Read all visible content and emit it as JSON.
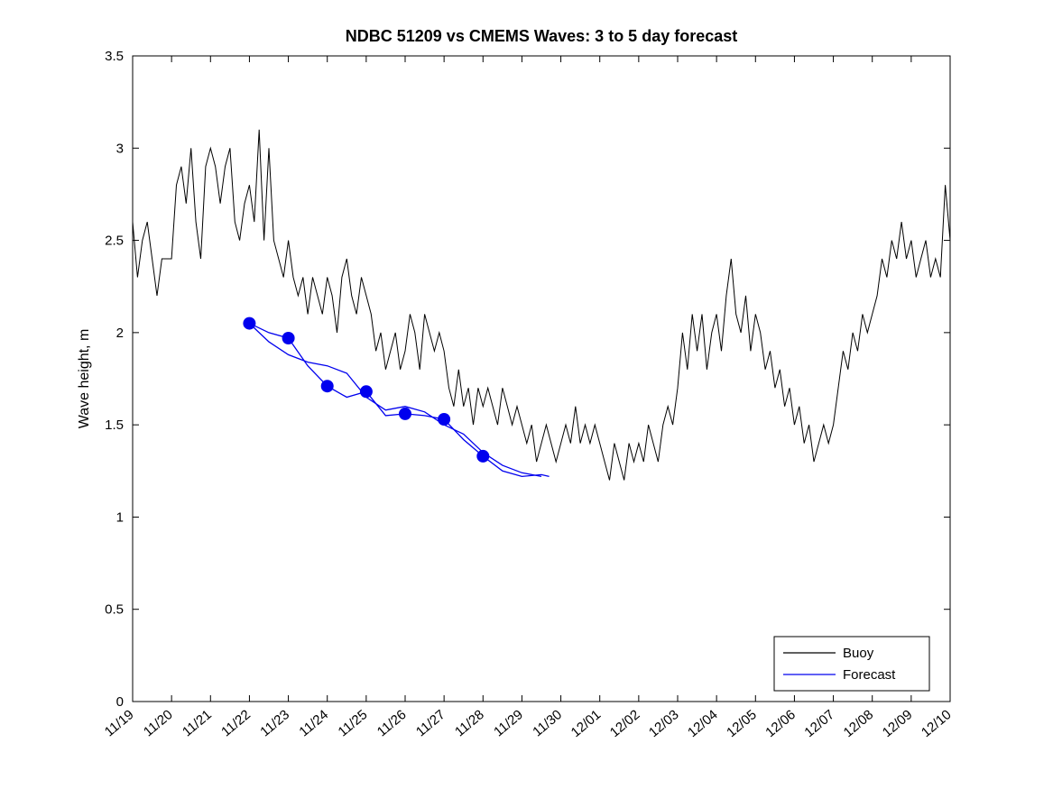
{
  "figure": {
    "background": "#ffffff"
  },
  "chart_data": {
    "type": "line",
    "title": "NDBC 51209 vs CMEMS Waves: 3 to 5 day forecast",
    "xlabel": "",
    "ylabel": "Wave height, m",
    "ylim": [
      0,
      3.5
    ],
    "xlim_days": [
      0,
      21
    ],
    "grid": false,
    "y_ticks": [
      0,
      0.5,
      1,
      1.5,
      2,
      2.5,
      3,
      3.5
    ],
    "y_tick_labels": [
      "0",
      "0.5",
      "1",
      "1.5",
      "2",
      "2.5",
      "3",
      "3.5"
    ],
    "x_tick_labels": [
      "11/19",
      "11/20",
      "11/21",
      "11/22",
      "11/23",
      "11/24",
      "11/25",
      "11/26",
      "11/27",
      "11/28",
      "11/29",
      "11/30",
      "12/01",
      "12/02",
      "12/03",
      "12/04",
      "12/05",
      "12/06",
      "12/07",
      "12/08",
      "12/09",
      "12/10"
    ],
    "x_tick_angle_deg": -40,
    "legend": {
      "position": "southeast",
      "entries": [
        "Buoy",
        "Forecast"
      ]
    },
    "series": [
      {
        "name": "Buoy",
        "color": "#000000",
        "line_width": 1,
        "x_start": 0,
        "x_step": 0.125,
        "values": [
          2.6,
          2.3,
          2.5,
          2.6,
          2.4,
          2.2,
          2.4,
          2.4,
          2.4,
          2.8,
          2.9,
          2.7,
          3.0,
          2.6,
          2.4,
          2.9,
          3.0,
          2.9,
          2.7,
          2.9,
          3.0,
          2.6,
          2.5,
          2.7,
          2.8,
          2.6,
          3.1,
          2.5,
          3.0,
          2.5,
          2.4,
          2.3,
          2.5,
          2.3,
          2.2,
          2.3,
          2.1,
          2.3,
          2.2,
          2.1,
          2.3,
          2.2,
          2.0,
          2.3,
          2.4,
          2.2,
          2.1,
          2.3,
          2.2,
          2.1,
          1.9,
          2.0,
          1.8,
          1.9,
          2.0,
          1.8,
          1.9,
          2.1,
          2.0,
          1.8,
          2.1,
          2.0,
          1.9,
          2.0,
          1.9,
          1.7,
          1.6,
          1.8,
          1.6,
          1.7,
          1.5,
          1.7,
          1.6,
          1.7,
          1.6,
          1.5,
          1.7,
          1.6,
          1.5,
          1.6,
          1.5,
          1.4,
          1.5,
          1.3,
          1.4,
          1.5,
          1.4,
          1.3,
          1.4,
          1.5,
          1.4,
          1.6,
          1.4,
          1.5,
          1.4,
          1.5,
          1.4,
          1.3,
          1.2,
          1.4,
          1.3,
          1.2,
          1.4,
          1.3,
          1.4,
          1.3,
          1.5,
          1.4,
          1.3,
          1.5,
          1.6,
          1.5,
          1.7,
          2.0,
          1.8,
          2.1,
          1.9,
          2.1,
          1.8,
          2.0,
          2.1,
          1.9,
          2.2,
          2.4,
          2.1,
          2.0,
          2.2,
          1.9,
          2.1,
          2.0,
          1.8,
          1.9,
          1.7,
          1.8,
          1.6,
          1.7,
          1.5,
          1.6,
          1.4,
          1.5,
          1.3,
          1.4,
          1.5,
          1.4,
          1.5,
          1.7,
          1.9,
          1.8,
          2.0,
          1.9,
          2.1,
          2.0,
          2.1,
          2.2,
          2.4,
          2.3,
          2.5,
          2.4,
          2.6,
          2.4,
          2.5,
          2.3,
          2.4,
          2.5,
          2.3,
          2.4,
          2.3,
          2.8,
          2.5
        ]
      },
      {
        "name": "Forecast",
        "color": "#0000EE",
        "line_width": 1.3,
        "marker_radius": 7,
        "lines": [
          {
            "x": [
              3,
              3.5,
              4,
              4.5,
              5,
              5.5,
              6,
              6.5,
              7,
              7.5,
              8,
              8.5,
              9,
              9.5,
              10,
              10.5,
              10.7
            ],
            "y": [
              2.05,
              2.0,
              1.97,
              1.82,
              1.71,
              1.65,
              1.68,
              1.55,
              1.56,
              1.55,
              1.53,
              1.42,
              1.33,
              1.25,
              1.22,
              1.23,
              1.22
            ]
          },
          {
            "x": [
              3,
              3.5,
              4,
              4.5,
              5,
              5.5,
              6,
              6.5,
              7,
              7.5,
              8,
              8.5,
              9,
              9.5,
              10,
              10.5
            ],
            "y": [
              2.05,
              1.95,
              1.88,
              1.84,
              1.82,
              1.78,
              1.65,
              1.58,
              1.6,
              1.57,
              1.5,
              1.45,
              1.35,
              1.28,
              1.24,
              1.22
            ]
          }
        ],
        "markers": [
          [
            3,
            2.05
          ],
          [
            4,
            1.97
          ],
          [
            5,
            1.71
          ],
          [
            6,
            1.68
          ],
          [
            7,
            1.56
          ],
          [
            8,
            1.53
          ],
          [
            9,
            1.33
          ]
        ]
      }
    ]
  }
}
